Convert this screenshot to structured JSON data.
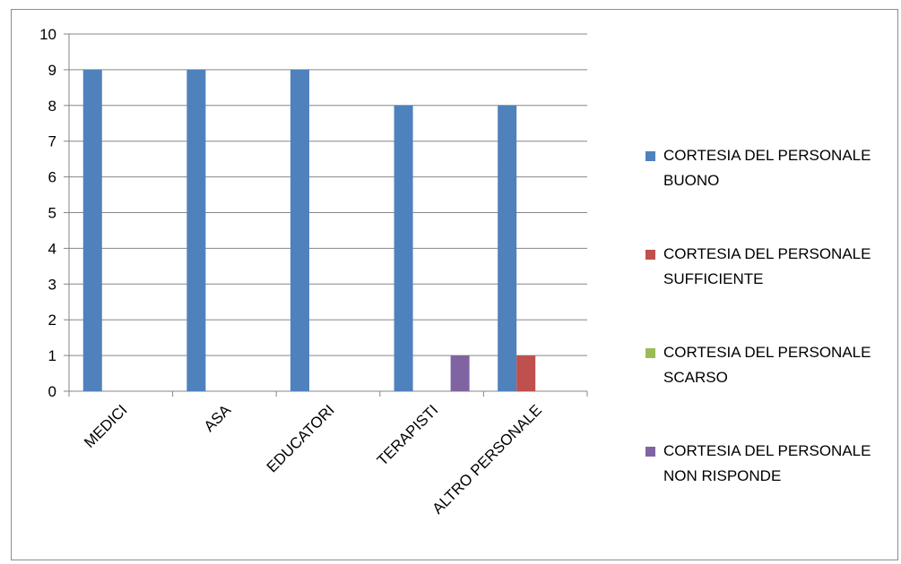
{
  "chart_data": {
    "type": "bar",
    "categories": [
      "MEDICI",
      "ASA",
      "EDUCATORI",
      "TERAPISTI",
      "ALTRO PERSONALE"
    ],
    "series": [
      {
        "name": "CORTESIA DEL PERSONALE BUONO",
        "color": "#4F81BD",
        "values": [
          9,
          9,
          9,
          8,
          8
        ]
      },
      {
        "name": "CORTESIA DEL PERSONALE SUFFICIENTE",
        "color": "#C0504D",
        "values": [
          0,
          0,
          0,
          0,
          1
        ]
      },
      {
        "name": "CORTESIA DEL PERSONALE SCARSO",
        "color": "#9BBB59",
        "values": [
          0,
          0,
          0,
          0,
          0
        ]
      },
      {
        "name": "CORTESIA DEL PERSONALE NON RISPONDE",
        "color": "#8064A2",
        "values": [
          0,
          0,
          0,
          1,
          0
        ]
      }
    ],
    "ylim": [
      0,
      10
    ],
    "yticks": [
      0,
      1,
      2,
      3,
      4,
      5,
      6,
      7,
      8,
      9,
      10
    ],
    "grid": true,
    "legend": "right",
    "title": "",
    "xlabel": "",
    "ylabel": ""
  }
}
